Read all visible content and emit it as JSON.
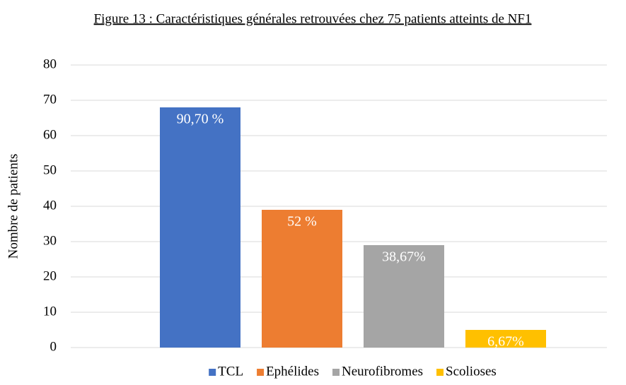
{
  "chart_data": {
    "type": "bar",
    "title": "Figure 13 : Caractéristiques générales retrouvées chez 75 patients atteints de NF1",
    "y_label": "Nombre de patients",
    "categories": [
      null
    ],
    "series": [
      {
        "name": "TCL",
        "color": "#4472c4",
        "values": [
          68
        ]
      },
      {
        "name": "Ephélides",
        "color": "#ed7d31",
        "values": [
          39
        ]
      },
      {
        "name": "Neurofibromes",
        "color": "#a5a5a5",
        "values": [
          29
        ]
      },
      {
        "name": "Scolioses",
        "color": "#ffc000",
        "values": [
          5
        ]
      }
    ],
    "annotations": [
      "90,70 %",
      "52 %",
      "38,67%",
      "6,67%"
    ],
    "ylim": [
      0,
      80
    ],
    "yticks": [
      0,
      10,
      20,
      30,
      40,
      50,
      60,
      70,
      80
    ],
    "grid": true,
    "legend": "bottom"
  }
}
